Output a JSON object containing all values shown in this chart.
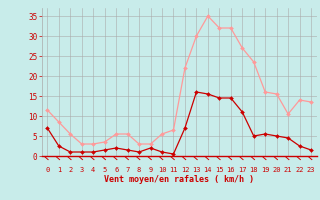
{
  "xlabel": "Vent moyen/en rafales ( km/h )",
  "x": [
    0,
    1,
    2,
    3,
    4,
    5,
    6,
    7,
    8,
    9,
    10,
    11,
    12,
    13,
    14,
    15,
    16,
    17,
    18,
    19,
    20,
    21,
    22,
    23
  ],
  "y_moyen": [
    7,
    2.5,
    1,
    1,
    1,
    1.5,
    2,
    1.5,
    1,
    2,
    1,
    0.5,
    7,
    16,
    15.5,
    14.5,
    14.5,
    11,
    5,
    5.5,
    5,
    4.5,
    2.5,
    1.5
  ],
  "y_rafales": [
    11.5,
    8.5,
    5.5,
    3,
    3,
    3.5,
    5.5,
    5.5,
    3,
    3,
    5.5,
    6.5,
    22,
    30,
    35,
    32,
    32,
    27,
    23.5,
    16,
    15.5,
    10.5,
    14,
    13.5
  ],
  "ylim": [
    0,
    37
  ],
  "yticks": [
    0,
    5,
    10,
    15,
    20,
    25,
    30,
    35
  ],
  "xlim": [
    -0.5,
    23.5
  ],
  "color_moyen": "#cc0000",
  "color_rafales": "#ff9999",
  "bg_color": "#c8ecea",
  "grid_color": "#aaaaaa",
  "tick_color": "#cc0000",
  "label_color": "#cc0000",
  "spine_color": "#cc0000"
}
